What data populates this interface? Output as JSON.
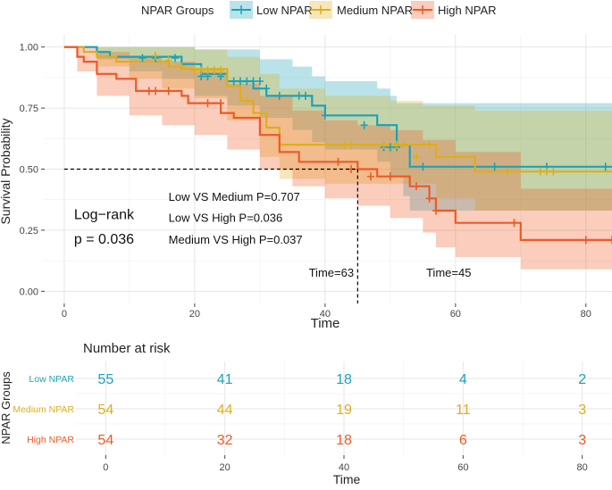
{
  "chart_data": [
    {
      "type": "line",
      "subtype": "kaplan-meier",
      "legend": {
        "title": "NPAR Groups",
        "position": "top",
        "items": [
          {
            "name": "Low NPAR",
            "color": "#1BA3B6"
          },
          {
            "name": "Medium NPAR",
            "color": "#DDAE1C"
          },
          {
            "name": "High NPAR",
            "color": "#EE5A24"
          }
        ]
      },
      "xlabel": "Time",
      "ylabel": "Survival Probability",
      "xlim": [
        -3,
        84
      ],
      "ylim": [
        -0.05,
        1.05
      ],
      "xticks": [
        0,
        20,
        40,
        60,
        80
      ],
      "yticks": [
        0,
        0.25,
        0.5,
        0.75,
        1
      ],
      "ytick_labels": [
        "0.00",
        "0.25",
        "0.50",
        "0.75",
        "1.00"
      ],
      "grid": true,
      "series": [
        {
          "name": "Low NPAR",
          "color": "#1BA3B6",
          "steps": [
            [
              0,
              1
            ],
            [
              5,
              0.98
            ],
            [
              7,
              0.96
            ],
            [
              11,
              0.96
            ],
            [
              13,
              0.96
            ],
            [
              18,
              0.93
            ],
            [
              21,
              0.89
            ],
            [
              25,
              0.86
            ],
            [
              29,
              0.83
            ],
            [
              31,
              0.8
            ],
            [
              38,
              0.76
            ],
            [
              40,
              0.72
            ],
            [
              48,
              0.68
            ],
            [
              51,
              0.6
            ],
            [
              53,
              0.51
            ],
            [
              84,
              0.51
            ]
          ],
          "censors": [
            [
              12,
              0.955
            ],
            [
              14,
              0.955
            ],
            [
              17,
              0.955
            ],
            [
              21,
              0.88
            ],
            [
              22,
              0.88
            ],
            [
              24,
              0.88
            ],
            [
              26,
              0.86
            ],
            [
              27,
              0.86
            ],
            [
              28,
              0.86
            ],
            [
              29,
              0.86
            ],
            [
              30,
              0.86
            ],
            [
              31,
              0.83
            ],
            [
              33,
              0.8
            ],
            [
              36,
              0.8
            ],
            [
              37,
              0.8
            ],
            [
              40,
              0.72
            ],
            [
              46,
              0.68
            ],
            [
              49,
              0.59
            ],
            [
              50,
              0.59
            ],
            [
              51,
              0.59
            ],
            [
              55,
              0.51
            ],
            [
              66,
              0.51
            ],
            [
              74,
              0.51
            ],
            [
              83,
              0.51
            ]
          ],
          "upper": [
            [
              0,
              1
            ],
            [
              15,
              1
            ],
            [
              20,
              0.99
            ],
            [
              30,
              0.95
            ],
            [
              35,
              0.92
            ],
            [
              38,
              0.88
            ],
            [
              40,
              0.86
            ],
            [
              48,
              0.83
            ],
            [
              50,
              0.8
            ],
            [
              51,
              0.77
            ],
            [
              84,
              0.77
            ]
          ],
          "lower": [
            [
              0,
              1
            ],
            [
              5,
              0.95
            ],
            [
              10,
              0.9
            ],
            [
              15,
              0.87
            ],
            [
              20,
              0.8
            ],
            [
              25,
              0.76
            ],
            [
              30,
              0.71
            ],
            [
              35,
              0.66
            ],
            [
              38,
              0.61
            ],
            [
              40,
              0.58
            ],
            [
              48,
              0.53
            ],
            [
              50,
              0.47
            ],
            [
              52,
              0.39
            ],
            [
              53,
              0.33
            ],
            [
              84,
              0.33
            ]
          ]
        },
        {
          "name": "Medium NPAR",
          "color": "#DDAE1C",
          "steps": [
            [
              0,
              1
            ],
            [
              3,
              0.98
            ],
            [
              5,
              0.96
            ],
            [
              8,
              0.94
            ],
            [
              13,
              0.94
            ],
            [
              16,
              0.92
            ],
            [
              18,
              0.91
            ],
            [
              25,
              0.84
            ],
            [
              27,
              0.78
            ],
            [
              29,
              0.73
            ],
            [
              31,
              0.67
            ],
            [
              33,
              0.6
            ],
            [
              51,
              0.6
            ],
            [
              57,
              0.55
            ],
            [
              63,
              0.49
            ],
            [
              84,
              0.49
            ]
          ],
          "censors": [
            [
              14,
              0.965
            ],
            [
              16,
              0.945
            ],
            [
              18,
              0.92
            ],
            [
              20,
              0.905
            ],
            [
              21,
              0.905
            ],
            [
              22,
              0.905
            ],
            [
              23,
              0.905
            ],
            [
              24,
              0.905
            ],
            [
              28,
              0.78
            ],
            [
              43,
              0.6
            ],
            [
              44,
              0.6
            ],
            [
              49,
              0.6
            ],
            [
              51,
              0.6
            ],
            [
              52,
              0.6
            ],
            [
              54,
              0.55
            ],
            [
              56,
              0.6
            ],
            [
              68,
              0.49
            ],
            [
              73,
              0.49
            ],
            [
              74,
              0.49
            ],
            [
              75,
              0.49
            ]
          ],
          "upper": [
            [
              0,
              1
            ],
            [
              15,
              1
            ],
            [
              20,
              0.99
            ],
            [
              25,
              0.96
            ],
            [
              30,
              0.89
            ],
            [
              33,
              0.83
            ],
            [
              40,
              0.8
            ],
            [
              50,
              0.78
            ],
            [
              55,
              0.76
            ],
            [
              63,
              0.74
            ],
            [
              84,
              0.74
            ]
          ],
          "lower": [
            [
              0,
              1
            ],
            [
              5,
              0.92
            ],
            [
              10,
              0.87
            ],
            [
              15,
              0.83
            ],
            [
              20,
              0.79
            ],
            [
              25,
              0.7
            ],
            [
              30,
              0.55
            ],
            [
              33,
              0.46
            ],
            [
              40,
              0.44
            ],
            [
              51,
              0.44
            ],
            [
              57,
              0.38
            ],
            [
              63,
              0.33
            ],
            [
              84,
              0.33
            ]
          ]
        },
        {
          "name": "High NPAR",
          "color": "#EE5A24",
          "steps": [
            [
              0,
              1
            ],
            [
              2,
              0.96
            ],
            [
              3,
              0.94
            ],
            [
              5,
              0.89
            ],
            [
              8,
              0.87
            ],
            [
              11,
              0.82
            ],
            [
              18,
              0.8
            ],
            [
              19,
              0.77
            ],
            [
              24,
              0.73
            ],
            [
              26,
              0.71
            ],
            [
              30,
              0.64
            ],
            [
              33,
              0.57
            ],
            [
              36,
              0.53
            ],
            [
              45,
              0.5
            ],
            [
              48,
              0.47
            ],
            [
              53,
              0.43
            ],
            [
              56,
              0.38
            ],
            [
              57,
              0.33
            ],
            [
              60,
              0.28
            ],
            [
              70,
              0.21
            ],
            [
              84,
              0.21
            ]
          ],
          "censors": [
            [
              13,
              0.82
            ],
            [
              14,
              0.82
            ],
            [
              16,
              0.82
            ],
            [
              22,
              0.77
            ],
            [
              24,
              0.77
            ],
            [
              42,
              0.53
            ],
            [
              44,
              0.5
            ],
            [
              47,
              0.47
            ],
            [
              50,
              0.47
            ],
            [
              54,
              0.43
            ],
            [
              56,
              0.38
            ],
            [
              57,
              0.33
            ],
            [
              69,
              0.28
            ],
            [
              80,
              0.21
            ],
            [
              84,
              0.21
            ]
          ],
          "upper": [
            [
              0,
              1
            ],
            [
              2,
              1
            ],
            [
              5,
              0.98
            ],
            [
              10,
              0.96
            ],
            [
              15,
              0.94
            ],
            [
              20,
              0.9
            ],
            [
              25,
              0.85
            ],
            [
              30,
              0.8
            ],
            [
              35,
              0.74
            ],
            [
              40,
              0.7
            ],
            [
              45,
              0.68
            ],
            [
              50,
              0.66
            ],
            [
              55,
              0.62
            ],
            [
              60,
              0.57
            ],
            [
              70,
              0.42
            ],
            [
              84,
              0.42
            ]
          ],
          "lower": [
            [
              0,
              1
            ],
            [
              2,
              0.9
            ],
            [
              5,
              0.8
            ],
            [
              10,
              0.72
            ],
            [
              15,
              0.68
            ],
            [
              20,
              0.64
            ],
            [
              25,
              0.58
            ],
            [
              30,
              0.5
            ],
            [
              35,
              0.43
            ],
            [
              40,
              0.38
            ],
            [
              45,
              0.35
            ],
            [
              50,
              0.3
            ],
            [
              55,
              0.24
            ],
            [
              57,
              0.18
            ],
            [
              60,
              0.14
            ],
            [
              70,
              0.09
            ],
            [
              84,
              0.09
            ]
          ]
        }
      ],
      "median_line": {
        "y": 0.5,
        "x": 45
      },
      "annotations": [
        {
          "text": "Low VS Medium P=0.707",
          "x": 16,
          "y": 0.37
        },
        {
          "text": "Low VS High P=0.036",
          "x": 16,
          "y": 0.285
        },
        {
          "text": "Medium VS High P=0.037",
          "x": 16,
          "y": 0.195
        },
        {
          "text": "Log−rank",
          "x": 1.5,
          "y": 0.295
        },
        {
          "text": "p = 0.036",
          "x": 1.5,
          "y": 0.195
        },
        {
          "text": "Time=63",
          "x": 37.5,
          "y": 0.06
        },
        {
          "text": "Time=45",
          "x": 55.5,
          "y": 0.06
        }
      ]
    },
    {
      "type": "table",
      "title": "Number at risk",
      "ylabel": "NPAR Groups",
      "xlabel": "Time",
      "xticks": [
        0,
        20,
        40,
        60,
        80
      ],
      "times": [
        0,
        20,
        40,
        60,
        80
      ],
      "rows": [
        {
          "name": "Low NPAR",
          "color": "#1BA3B6",
          "values": [
            55,
            41,
            18,
            4,
            2
          ]
        },
        {
          "name": "Medium NPAR",
          "color": "#DDAE1C",
          "values": [
            54,
            44,
            19,
            11,
            3
          ]
        },
        {
          "name": "High NPAR",
          "color": "#EE5A24",
          "values": [
            54,
            32,
            18,
            6,
            3
          ]
        }
      ]
    }
  ]
}
